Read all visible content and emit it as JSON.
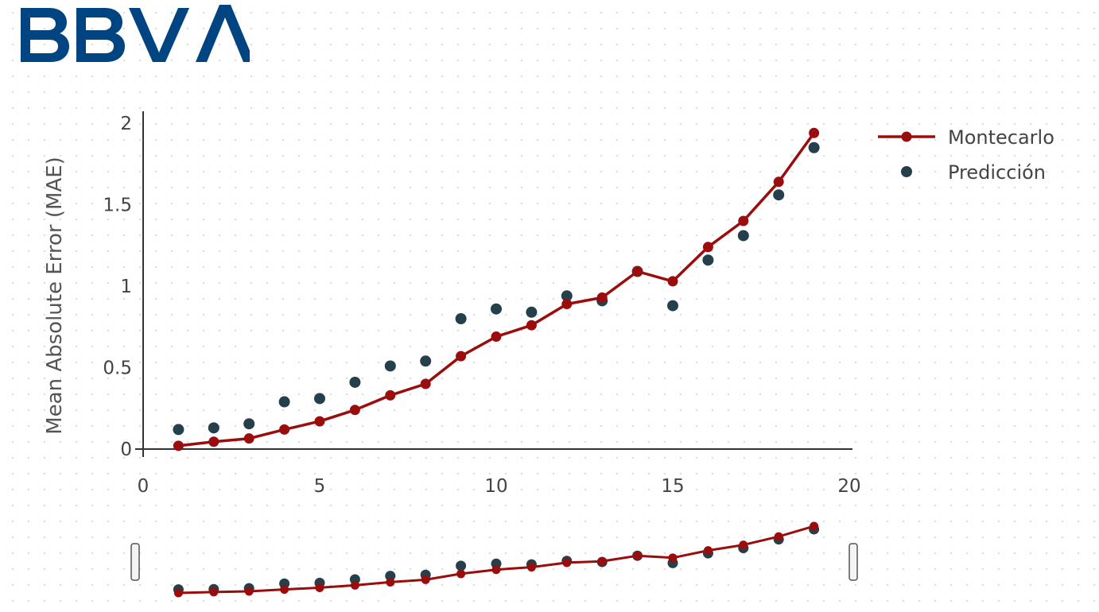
{
  "brand": {
    "logo_text": "BBVA",
    "color": "#004481"
  },
  "chart_data": {
    "type": "line",
    "x": [
      1,
      2,
      3,
      4,
      5,
      6,
      7,
      8,
      9,
      10,
      11,
      12,
      13,
      14,
      15,
      16,
      17,
      18,
      19
    ],
    "series": [
      {
        "name": "Montecarlo",
        "mode": "lines+markers",
        "color": "#9b0d0d",
        "values": [
          0.02,
          0.045,
          0.065,
          0.12,
          0.17,
          0.24,
          0.33,
          0.4,
          0.57,
          0.69,
          0.76,
          0.89,
          0.93,
          1.09,
          1.03,
          1.24,
          1.4,
          1.64,
          1.94
        ]
      },
      {
        "name": "Predicción",
        "mode": "markers",
        "color": "#253f4b",
        "values": [
          0.12,
          0.13,
          0.155,
          0.29,
          0.31,
          0.41,
          0.51,
          0.54,
          0.8,
          0.86,
          0.84,
          0.94,
          0.91,
          1.09,
          0.88,
          1.16,
          1.31,
          1.56,
          1.85
        ]
      }
    ],
    "xlabel": "",
    "ylabel": "Mean Absolute Error (MAE)",
    "xlim": [
      0,
      20
    ],
    "ylim": [
      0,
      2
    ],
    "xticks": [
      "0",
      "5",
      "10",
      "15",
      "20"
    ],
    "yticks": [
      "0",
      "0.5",
      "1",
      "1.5",
      "2"
    ],
    "grid": false,
    "legend_position": "top-right",
    "range_slider": true
  }
}
